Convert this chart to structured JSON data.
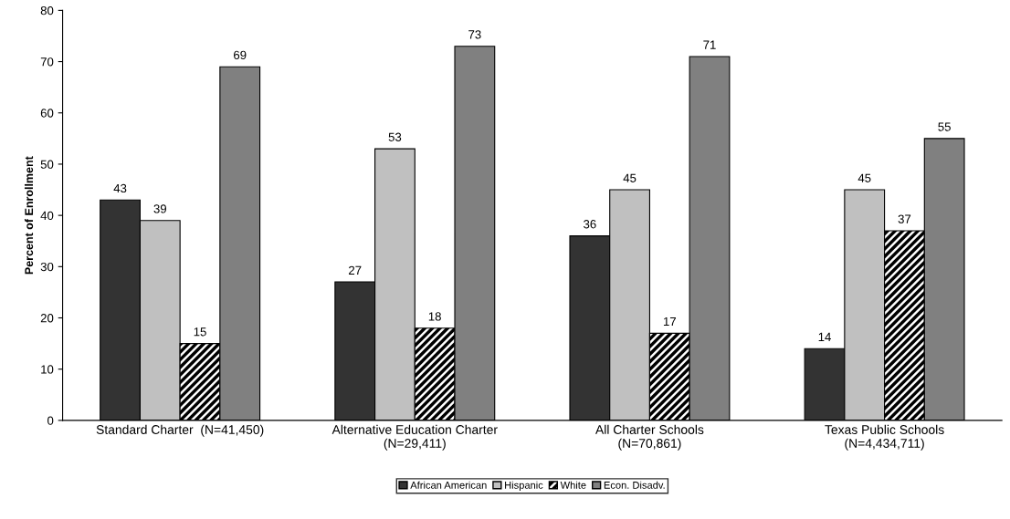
{
  "chart_data": {
    "type": "bar",
    "ylabel": "Percent of Enrollment",
    "categories": [
      "Standard Charter  (N=41,450)",
      "Alternative Education Charter\n(N=29,411)",
      "All Charter Schools\n(N=70,861)",
      "Texas Public Schools\n(N=4,434,711)"
    ],
    "series": [
      {
        "name": "African American",
        "color": "#333333",
        "values": [
          43,
          27,
          36,
          14
        ]
      },
      {
        "name": "Hispanic",
        "color": "#c0c0c0",
        "values": [
          39,
          53,
          45,
          45
        ]
      },
      {
        "name": "White",
        "color": "#000000",
        "values": [
          15,
          18,
          17,
          37
        ]
      },
      {
        "name": "Econ. Disadv.",
        "color": "#808080",
        "values": [
          69,
          73,
          71,
          55
        ]
      }
    ],
    "ylim": [
      0,
      80
    ],
    "yticks": [
      0,
      10,
      20,
      30,
      40,
      50,
      60,
      70,
      80
    ],
    "data_labels": true,
    "grid": false,
    "legend": "bottom"
  }
}
